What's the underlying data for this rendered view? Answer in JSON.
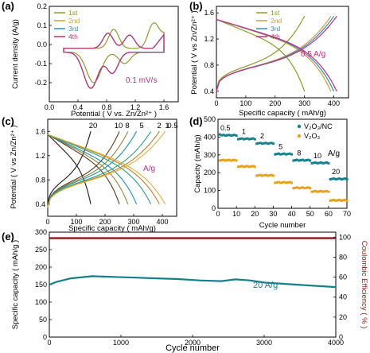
{
  "chart_data": [
    {
      "panel": "(a)",
      "type": "line",
      "xlabel": "Potential ( V vs. Zn/Zn²⁺ )",
      "ylabel": "Current density (A/g)",
      "xlim": [
        0.0,
        1.8
      ],
      "ylim": [
        -0.3,
        0.2
      ],
      "xticks": [
        "0.0",
        "0.4",
        "0.8",
        "1.2",
        "1.6"
      ],
      "yticks": [
        "-0.2",
        "-0.1",
        "0.0",
        "0.1",
        "0.2"
      ],
      "annotation": "0.1 mV/s",
      "legend_position": "top-left",
      "series": [
        {
          "name": "1st",
          "color": "#8c9a2a"
        },
        {
          "name": "2nd",
          "color": "#d89a3a"
        },
        {
          "name": "3rd",
          "color": "#2e8fc9"
        },
        {
          "name": "4th",
          "color": "#c02f7a"
        }
      ]
    },
    {
      "panel": "(b)",
      "type": "line",
      "xlabel": "Specific capacity ( mAh/g)",
      "ylabel": "Potential ( V vs Zn/Zn²⁺ )",
      "xlim": [
        0,
        450
      ],
      "ylim": [
        0.3,
        1.7
      ],
      "xticks": [
        "0",
        "100",
        "200",
        "300",
        "400"
      ],
      "yticks": [
        "0.4",
        "0.8",
        "1.2",
        "1.6"
      ],
      "annotation": "0.5 A/g",
      "legend_position": "top-center",
      "series": [
        {
          "name": "1st",
          "color": "#8c9a2a"
        },
        {
          "name": "2nd",
          "color": "#d89a3a"
        },
        {
          "name": "3rd",
          "color": "#2e8fc9"
        },
        {
          "name": "4th",
          "color": "#c02f7a"
        }
      ]
    },
    {
      "panel": "(c)",
      "type": "line",
      "xlabel": "Specific capacity ( mAh/g)",
      "ylabel": "Potential ( V vs Zn/Zn²⁺ )",
      "xlim": [
        0,
        450
      ],
      "ylim": [
        0.2,
        1.8
      ],
      "xticks": [
        "0",
        "100",
        "200",
        "300",
        "400"
      ],
      "yticks": [
        "0.4",
        "0.8",
        "1.2",
        "1.6"
      ],
      "annotation": "A/g",
      "rate_labels": [
        "20",
        "10",
        "8",
        "5",
        "2",
        "1",
        "0.5"
      ],
      "colors": [
        "#1a1a1a",
        "#5b3a1e",
        "#8a8a3a",
        "#1f8fb3",
        "#2aa07a",
        "#c07a30",
        "#d9b23a"
      ]
    },
    {
      "panel": "(d)",
      "type": "scatter",
      "xlabel": "Cycle number",
      "ylabel": "Capacity (mAh/g)",
      "xlim": [
        0,
        70
      ],
      "ylim": [
        0,
        500
      ],
      "xticks": [
        "0",
        "10",
        "20",
        "30",
        "40",
        "50",
        "60",
        "70"
      ],
      "yticks": [
        "0",
        "100",
        "200",
        "300",
        "400",
        "500"
      ],
      "unit_annotation": "A/g",
      "rate_labels": [
        "0.5",
        "1",
        "2",
        "5",
        "8",
        "10",
        "20"
      ],
      "legend_position": "top-right",
      "series": [
        {
          "name": "V₂O₃/NC",
          "color": "#15808a",
          "values": [
            410,
            390,
            365,
            305,
            270,
            255,
            165
          ]
        },
        {
          "name": "V₂O₃",
          "color": "#e6a21a",
          "values": [
            270,
            235,
            185,
            145,
            115,
            95,
            45
          ]
        }
      ]
    },
    {
      "panel": "(e)",
      "type": "line",
      "xlabel": "Cycle number",
      "ylabel": "Specific capacity ( mAh/g )",
      "y2label": "Coulombic Efficiency ( % )",
      "xlim": [
        0,
        4000
      ],
      "ylim": [
        0,
        300
      ],
      "y2lim": [
        0,
        105
      ],
      "xticks": [
        "0",
        "1000",
        "2000",
        "3000",
        "4000"
      ],
      "yticks": [
        "0",
        "50",
        "100",
        "150",
        "200",
        "250",
        "300"
      ],
      "y2ticks": [
        "0",
        "20",
        "40",
        "60",
        "80",
        "100"
      ],
      "annotation": "20 A/g",
      "capacity_color": "#15808a",
      "efficiency_color": "#8b1a1a",
      "capacity_points": [
        [
          1,
          150
        ],
        [
          100,
          158
        ],
        [
          300,
          168
        ],
        [
          600,
          174
        ],
        [
          900,
          172
        ],
        [
          1200,
          170
        ],
        [
          1500,
          168
        ],
        [
          1800,
          166
        ],
        [
          2100,
          162
        ],
        [
          2400,
          160
        ],
        [
          2600,
          165
        ],
        [
          2800,
          162
        ],
        [
          3000,
          156
        ],
        [
          3300,
          152
        ],
        [
          3600,
          148
        ],
        [
          4000,
          143
        ]
      ],
      "efficiency_value": 99
    }
  ]
}
